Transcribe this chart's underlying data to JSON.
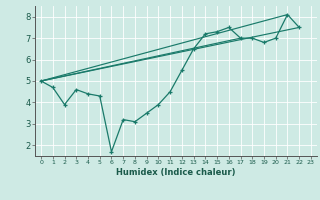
{
  "title": "",
  "xlabel": "Humidex (Indice chaleur)",
  "ylabel": "",
  "background_color": "#ceeae4",
  "grid_color": "#ffffff",
  "line_color": "#1a7a6a",
  "xlim": [
    -0.5,
    23.5
  ],
  "ylim": [
    1.5,
    8.5
  ],
  "xticks": [
    0,
    1,
    2,
    3,
    4,
    5,
    6,
    7,
    8,
    9,
    10,
    11,
    12,
    13,
    14,
    15,
    16,
    17,
    18,
    19,
    20,
    21,
    22,
    23
  ],
  "yticks": [
    2,
    3,
    4,
    5,
    6,
    7,
    8
  ],
  "main_series": [
    0,
    1,
    2,
    3,
    4,
    5,
    6,
    7,
    8,
    9,
    10,
    11,
    12,
    13,
    14,
    15,
    16,
    17,
    18,
    19,
    20,
    21,
    22
  ],
  "main_y": [
    5.0,
    4.7,
    3.9,
    4.6,
    4.4,
    4.3,
    1.7,
    3.2,
    3.1,
    3.5,
    3.9,
    4.5,
    5.5,
    6.5,
    7.2,
    7.3,
    7.5,
    7.0,
    7.0,
    6.8,
    7.0,
    8.1,
    7.5
  ],
  "straight_lines": [
    {
      "x0": 0,
      "y0": 5.0,
      "x1": 21,
      "y1": 8.1
    },
    {
      "x0": 0,
      "y0": 5.0,
      "x1": 22,
      "y1": 7.5
    },
    {
      "x0": 0,
      "y0": 5.0,
      "x1": 17,
      "y1": 7.0
    }
  ]
}
